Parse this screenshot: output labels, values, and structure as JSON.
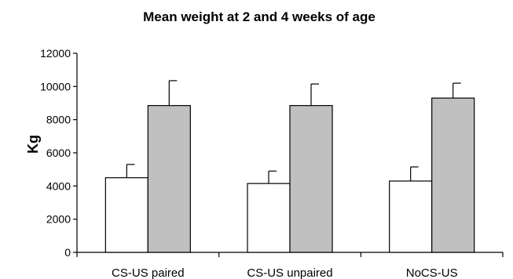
{
  "chart_data": {
    "type": "bar",
    "title": "Mean weight at 2 and 4 weeks of age",
    "xlabel": "",
    "ylabel": "Kg",
    "ylim": [
      0,
      12000
    ],
    "yticks": [
      0,
      2000,
      4000,
      6000,
      8000,
      10000,
      12000
    ],
    "ytick_labels": [
      "0",
      "2000",
      "4000",
      "6000",
      "8000",
      "10000",
      "12000"
    ],
    "categories": [
      "CS-US paired",
      "CS-US unpaired",
      "NoCS-US"
    ],
    "grid": false,
    "legend": "none",
    "series": [
      {
        "values": [
          4500,
          4150,
          4300
        ],
        "errors": [
          800,
          750,
          850
        ],
        "color": "#ffffff"
      },
      {
        "values": [
          8850,
          8850,
          9300
        ],
        "errors": [
          1500,
          1300,
          900
        ],
        "color": "#c0c0c0"
      }
    ]
  }
}
